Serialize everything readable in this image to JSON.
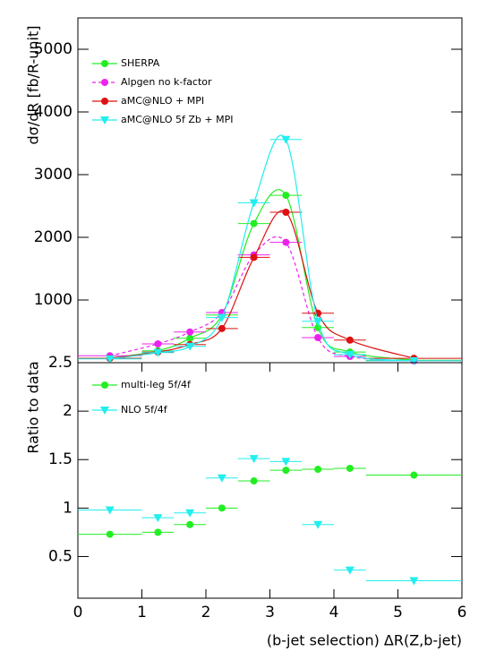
{
  "chart_data": [
    {
      "type": "line",
      "ylabel": "dσ/dR [fb/R-unit]",
      "x": [
        0.5,
        1.25,
        1.75,
        2.25,
        2.75,
        3.25,
        3.75,
        4.25,
        5.25
      ],
      "bin_edges": [
        0,
        1,
        1.5,
        2,
        2.5,
        3,
        3.5,
        4,
        4.5,
        6
      ],
      "xlim": [
        0,
        6
      ],
      "ylim": [
        0,
        5500
      ],
      "yticks": [
        1000,
        2000,
        3000,
        4000,
        5000
      ],
      "series": [
        {
          "name": "SHERPA",
          "color": "#22ee22",
          "marker": "circle",
          "dash": false,
          "values": [
            70,
            190,
            390,
            760,
            2220,
            2670,
            560,
            170,
            40
          ]
        },
        {
          "name": "Alpgen no k-factor",
          "color": "#ee22ee",
          "marker": "circle",
          "dash": true,
          "values": [
            110,
            300,
            490,
            800,
            1720,
            1920,
            400,
            100,
            30
          ]
        },
        {
          "name": "aMC@NLO + MPI",
          "color": "#dd1111",
          "marker": "circle",
          "dash": false,
          "values": [
            70,
            170,
            290,
            545,
            1680,
            2400,
            790,
            360,
            70
          ]
        },
        {
          "name": "aMC@NLO 5f Zb + MPI",
          "color": "#22eeee",
          "marker": "triangle",
          "dash": false,
          "values": [
            60,
            160,
            260,
            720,
            2550,
            3560,
            660,
            130,
            30
          ]
        }
      ]
    },
    {
      "type": "line",
      "ylabel": "Ratio to data",
      "xlabel": "(b-jet selection) ΔR(Z,b-jet)",
      "x": [
        0.5,
        1.25,
        1.75,
        2.25,
        2.75,
        3.25,
        3.75,
        4.25,
        5.25
      ],
      "bin_edges": [
        0,
        1,
        1.5,
        2,
        2.5,
        3,
        3.5,
        4,
        4.5,
        6
      ],
      "xlim": [
        0,
        6
      ],
      "xticks": [
        0,
        1,
        2,
        3,
        4,
        5,
        6
      ],
      "ylim": [
        0.07,
        2.5
      ],
      "yticks": [
        0.5,
        1,
        1.5,
        2,
        2.5
      ],
      "series": [
        {
          "name": "multi-leg 5f/4f",
          "color": "#22ee22",
          "marker": "circle",
          "dash": false,
          "values": [
            0.73,
            0.75,
            0.83,
            1.0,
            1.28,
            1.39,
            1.4,
            1.41,
            1.34
          ]
        },
        {
          "name": "NLO 5f/4f",
          "color": "#22eeee",
          "marker": "triangle",
          "dash": false,
          "values": [
            0.98,
            0.9,
            0.95,
            1.31,
            1.51,
            1.48,
            0.83,
            0.36,
            0.25
          ]
        }
      ]
    }
  ]
}
